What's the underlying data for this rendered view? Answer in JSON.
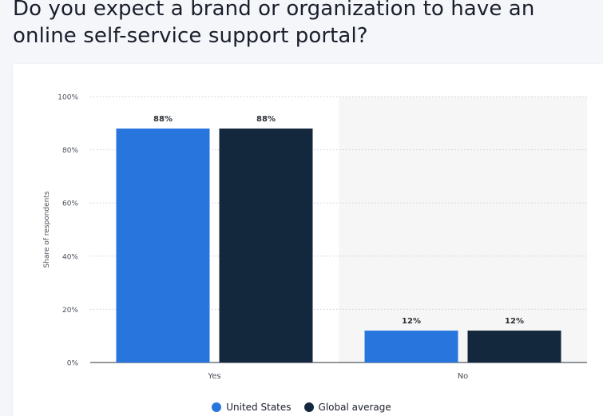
{
  "title": "Do you expect a brand or organization to have an online self-service support portal?",
  "colors": {
    "series_0": "#2876dd",
    "series_1": "#14283d",
    "highlight_band": "#f6f6f6"
  },
  "chart_data": {
    "type": "bar",
    "categories": [
      "Yes",
      "No"
    ],
    "series": [
      {
        "name": "United States",
        "values": [
          88,
          12
        ]
      },
      {
        "name": "Global average",
        "values": [
          88,
          12
        ]
      }
    ],
    "data_labels": [
      [
        "88%",
        "12%"
      ],
      [
        "88%",
        "12%"
      ]
    ],
    "ylabel": "Share of respondents",
    "xlabel": "",
    "ylim": [
      0,
      100
    ],
    "yticks": [
      0,
      20,
      40,
      60,
      80,
      100
    ],
    "ytick_labels": [
      "0%",
      "20%",
      "40%",
      "60%",
      "80%",
      "100%"
    ],
    "grid": true,
    "legend": "bottom-center"
  }
}
